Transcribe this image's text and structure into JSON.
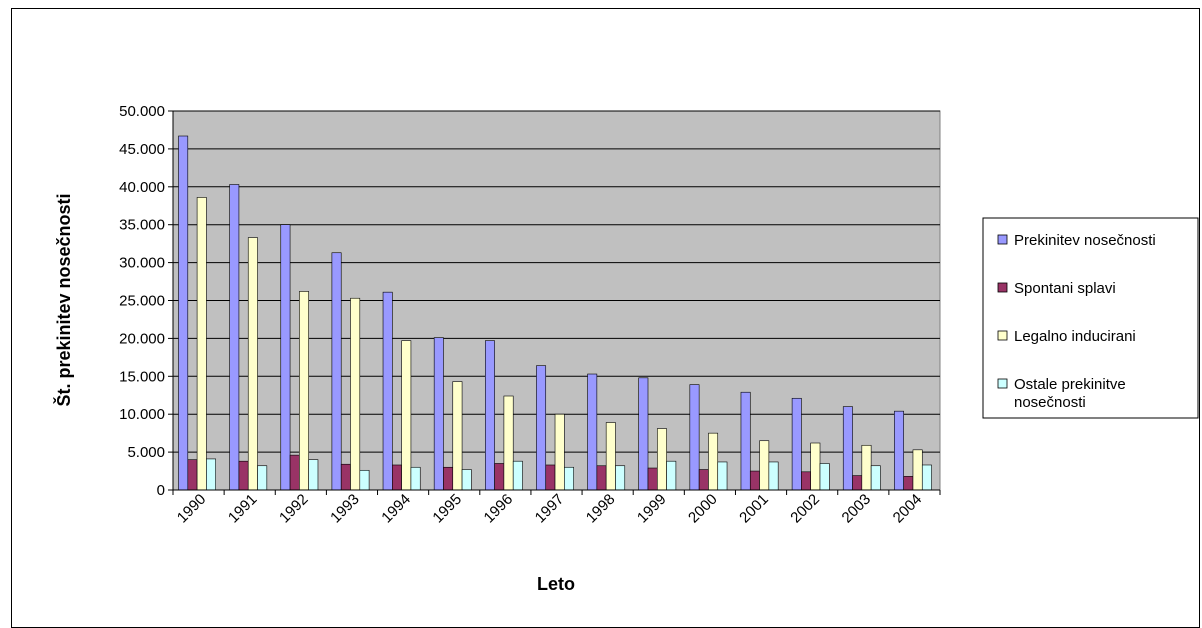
{
  "chart_data": {
    "type": "bar",
    "title": "",
    "xlabel": "Leto",
    "ylabel": "Št. prekinitev nosečnosti",
    "ylim": [
      0,
      50000
    ],
    "yticks": [
      0,
      5000,
      10000,
      15000,
      20000,
      25000,
      30000,
      35000,
      40000,
      45000,
      50000
    ],
    "ytick_labels": [
      "0",
      "5.000",
      "10.000",
      "15.000",
      "20.000",
      "25.000",
      "30.000",
      "35.000",
      "40.000",
      "45.000",
      "50.000"
    ],
    "categories": [
      "1990",
      "1991",
      "1992",
      "1993",
      "1994",
      "1995",
      "1996",
      "1997",
      "1998",
      "1999",
      "2000",
      "2001",
      "2002",
      "2003",
      "2004"
    ],
    "grid": true,
    "legend_position": "right",
    "series": [
      {
        "name": "Prekinitev nosečnosti",
        "color": "#9999ff",
        "values": [
          46700,
          40300,
          35000,
          31300,
          26100,
          20100,
          19700,
          16400,
          15300,
          14800,
          13900,
          12900,
          12100,
          11000,
          10400
        ]
      },
      {
        "name": "Spontani splavi",
        "color": "#993366",
        "values": [
          4000,
          3800,
          4600,
          3400,
          3300,
          3000,
          3500,
          3300,
          3200,
          2900,
          2700,
          2500,
          2400,
          1900,
          1800
        ]
      },
      {
        "name": "Legalno inducirani",
        "color": "#ffffcc",
        "values": [
          38600,
          33300,
          26200,
          25300,
          19700,
          14300,
          12400,
          10000,
          8900,
          8100,
          7500,
          6500,
          6200,
          5900,
          5300
        ]
      },
      {
        "name": "Ostale prekinitve nosečnosti",
        "color": "#ccffff",
        "values": [
          4100,
          3200,
          4000,
          2600,
          3000,
          2700,
          3800,
          3000,
          3200,
          3800,
          3700,
          3700,
          3500,
          3200,
          3300
        ]
      }
    ],
    "plot_background": "#c0c0c0"
  }
}
